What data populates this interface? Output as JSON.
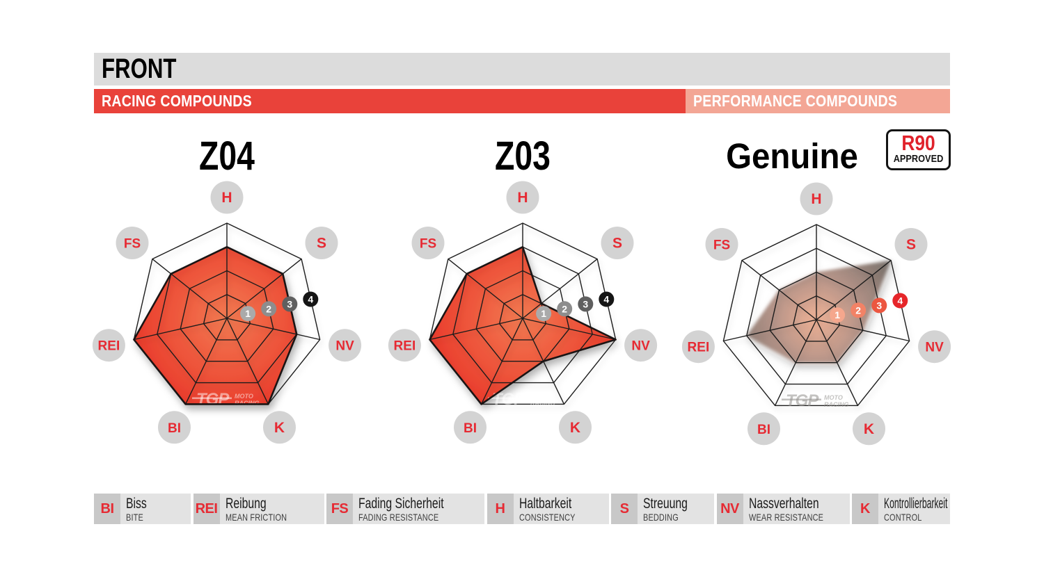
{
  "header": {
    "title": "FRONT",
    "bands": [
      {
        "label": "RACING COMPOUNDS"
      },
      {
        "label": "PERFORMANCE COMPOUNDS"
      }
    ]
  },
  "scale_labels": [
    "1",
    "2",
    "3",
    "4"
  ],
  "watermark": {
    "logo": "TGP",
    "line1": "MOTO",
    "line2": "RACING"
  },
  "chart_data": [
    {
      "type": "radar",
      "title": "Z04",
      "section": "RACING COMPOUNDS",
      "axes": [
        "H",
        "S",
        "NV",
        "K",
        "BI",
        "REI",
        "FS"
      ],
      "max": 4,
      "rings": [
        1,
        2,
        3,
        4
      ],
      "values": {
        "H": 3,
        "S": 3,
        "NV": 3,
        "K": 4,
        "BI": 4,
        "REI": 4,
        "FS": 3
      },
      "fill_style": "red"
    },
    {
      "type": "radar",
      "title": "Z03",
      "section": "RACING COMPOUNDS",
      "axes": [
        "H",
        "S",
        "NV",
        "K",
        "BI",
        "REI",
        "FS"
      ],
      "max": 4,
      "rings": [
        1,
        2,
        3,
        4
      ],
      "values": {
        "H": 3,
        "S": 1,
        "NV": 4,
        "K": 2,
        "BI": 4,
        "REI": 4,
        "FS": 3
      },
      "fill_style": "red"
    },
    {
      "type": "radar",
      "title": "Genuine",
      "section": "PERFORMANCE COMPOUNDS",
      "badge": {
        "top": "R90",
        "bottom": "APPROVED"
      },
      "axes": [
        "H",
        "S",
        "NV",
        "K",
        "BI",
        "REI",
        "FS"
      ],
      "max": 4,
      "rings": [
        1,
        2,
        3,
        4
      ],
      "values": {
        "H": 2,
        "S": 4,
        "NV": 2,
        "K": 2,
        "BI": 2,
        "REI": 3,
        "FS": 2
      },
      "fill_style": "smoke"
    }
  ],
  "legend": {
    "items": [
      {
        "abbr": "BI",
        "name_de": "Biss",
        "name_en": "BITE"
      },
      {
        "abbr": "REI",
        "name_de": "Reibung",
        "name_en": "MEAN FRICTION"
      },
      {
        "abbr": "FS",
        "name_de": "Fading Sicherheit",
        "name_en": "FADING RESISTANCE"
      },
      {
        "abbr": "H",
        "name_de": "Haltbarkeit",
        "name_en": "CONSISTENCY"
      },
      {
        "abbr": "S",
        "name_de": "Streuung",
        "name_en": "BEDDING"
      },
      {
        "abbr": "NV",
        "name_de": "Nassverhalten",
        "name_en": "WEAR RESISTANCE"
      },
      {
        "abbr": "K",
        "name_de": "Kontrollierbarkeit",
        "name_en": "CONTROL"
      }
    ]
  },
  "colors": {
    "title_bar_bg": "#dcdcdc",
    "racing_band": "#e9423a",
    "performance_band": "#f3a695",
    "band_text": "#ffffff",
    "accent_red": "#e62a33",
    "web_line": "#1c1c1c",
    "axis_circle_bg": "#d3d3d3",
    "red_fill_center": "#f37a52",
    "red_fill_mid": "#ee573c",
    "red_fill_edge": "#e93a2b",
    "red_stroke": "#1a1414",
    "smoke_center": "#f2b295",
    "smoke_mid": "#b39084",
    "smoke_edge": "#6e6862",
    "scale_gray": [
      "#aaaaaa",
      "#8d8d8d",
      "#5f5f5f",
      "#151515"
    ],
    "scale_warm": [
      "#f5a78d",
      "#f28266",
      "#ec5640",
      "#e6262a"
    ],
    "badge_border": "#141414",
    "badge_r90": "#e0222b",
    "legend_abbr_bg": "#c8c8c8",
    "legend_item_bg": "#e3e3e3",
    "watermark_on_red": "rgba(255,255,255,0.5)",
    "watermark_on_white": "rgba(145,143,141,0.55)"
  }
}
